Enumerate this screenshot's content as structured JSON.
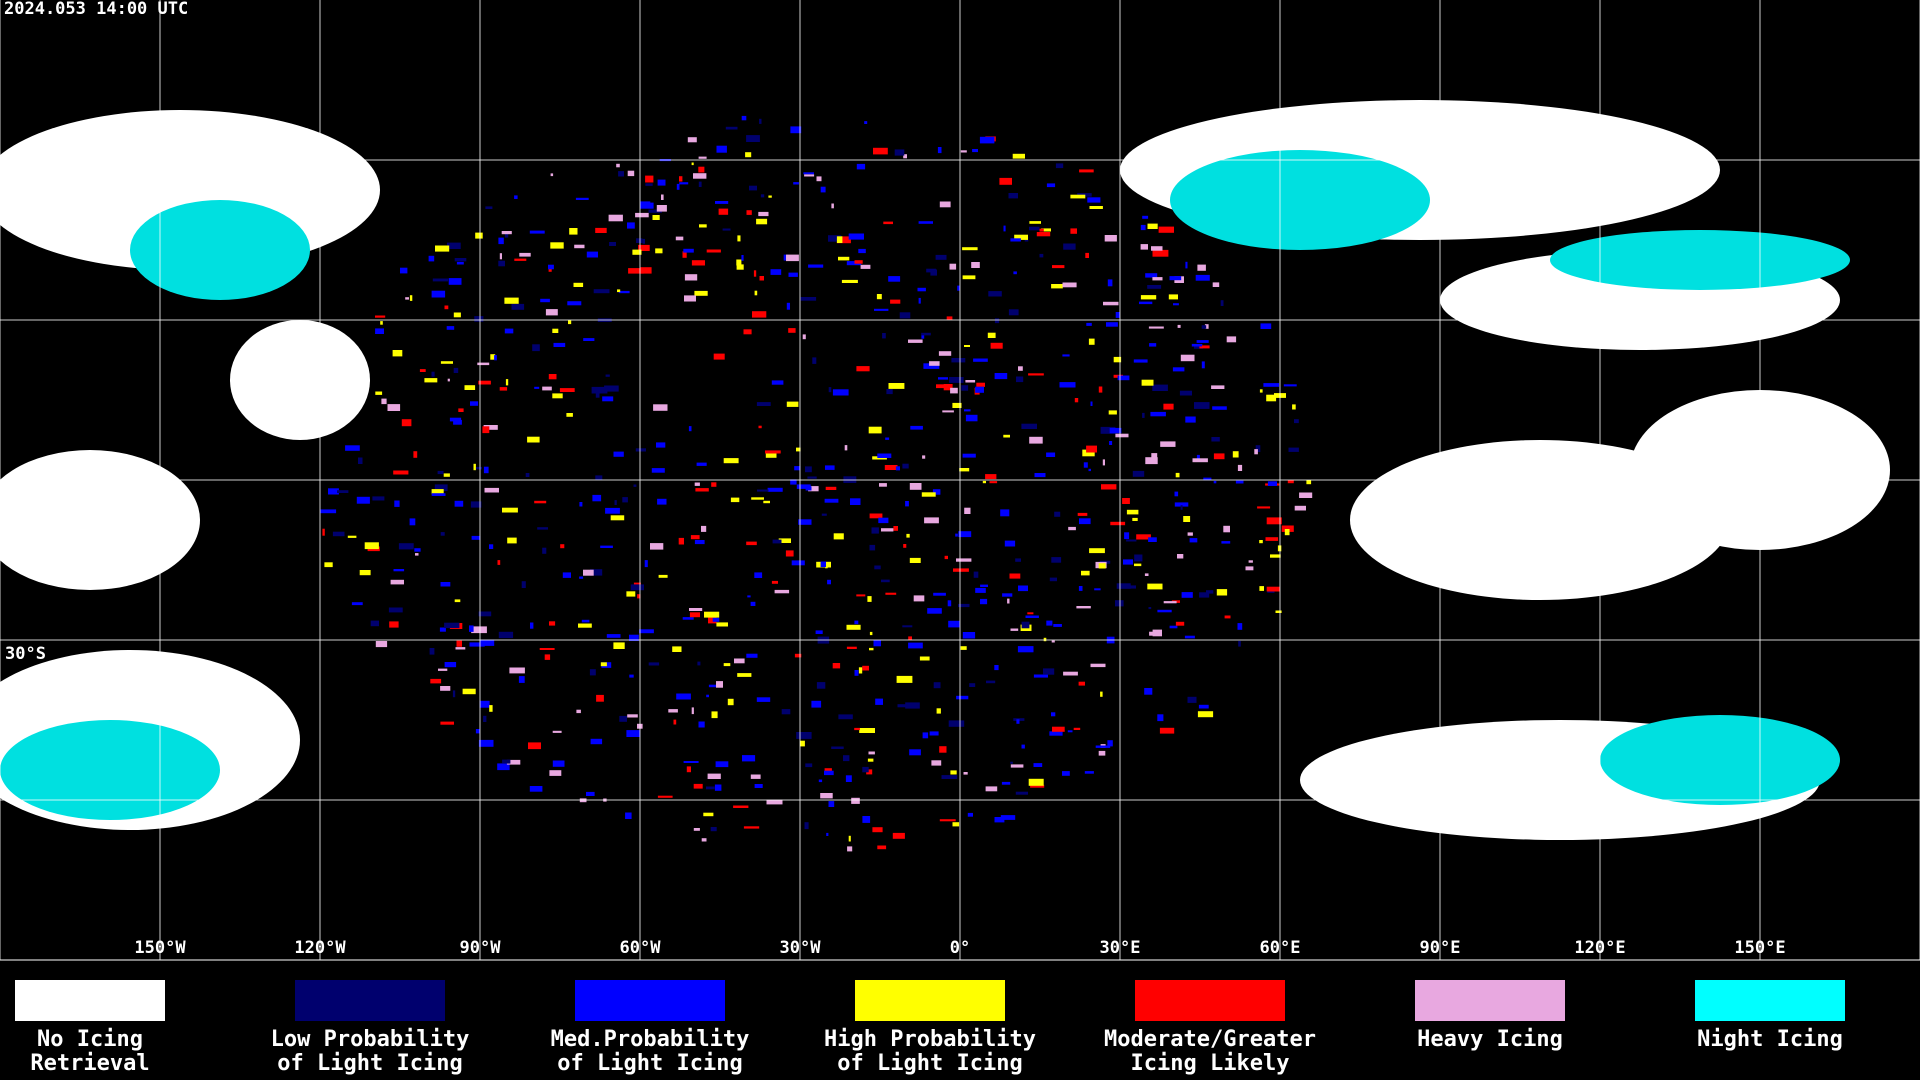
{
  "header": {
    "timestamp": "2024.053 14:00 UTC"
  },
  "map": {
    "longitude_labels": [
      "150°W",
      "120°W",
      "90°W",
      "60°W",
      "30°W",
      "0°",
      "30°E",
      "60°E",
      "90°E",
      "120°E",
      "150°E"
    ],
    "latitude_labels": [
      "30°S"
    ]
  },
  "legend": [
    {
      "label_lines": [
        "No Icing",
        "Retrieval"
      ],
      "color": "#ffffff"
    },
    {
      "label_lines": [
        "Low Probability",
        "of Light Icing"
      ],
      "color": "#00006e"
    },
    {
      "label_lines": [
        "Med.Probability",
        "of Light Icing"
      ],
      "color": "#0000ff"
    },
    {
      "label_lines": [
        "High Probability",
        "of Light Icing"
      ],
      "color": "#ffff00"
    },
    {
      "label_lines": [
        "Moderate/Greater",
        "Icing Likely"
      ],
      "color": "#ff0000"
    },
    {
      "label_lines": [
        "Heavy Icing"
      ],
      "color": "#e8a8e0"
    },
    {
      "label_lines": [
        "Night Icing"
      ],
      "color": "#00ffff"
    }
  ]
}
